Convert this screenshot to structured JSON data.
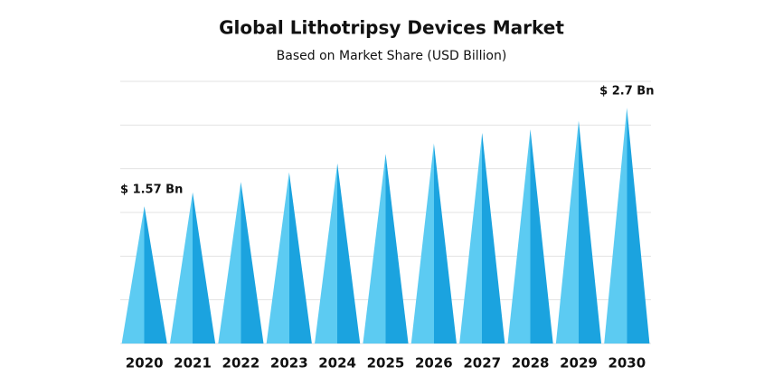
{
  "chart_data": {
    "type": "cone",
    "title": "Global Lithotripsy Devices Market",
    "subtitle": "Based on Market Share (USD Billion)",
    "categories": [
      "2020",
      "2021",
      "2022",
      "2023",
      "2024",
      "2025",
      "2026",
      "2027",
      "2028",
      "2029",
      "2030"
    ],
    "values": [
      1.57,
      1.73,
      1.85,
      1.96,
      2.06,
      2.17,
      2.29,
      2.41,
      2.45,
      2.55,
      2.7
    ],
    "value_labels": [
      "$ 1.57 Bn",
      null,
      null,
      null,
      null,
      null,
      null,
      null,
      null,
      null,
      "$ 2.7 Bn"
    ],
    "colors": [
      "#5ccbf2",
      "#1ba3df"
    ],
    "ylim": [
      0,
      3
    ],
    "yticks": [
      0,
      0.5,
      1,
      1.5,
      2,
      2.5,
      3
    ],
    "grid": true
  }
}
